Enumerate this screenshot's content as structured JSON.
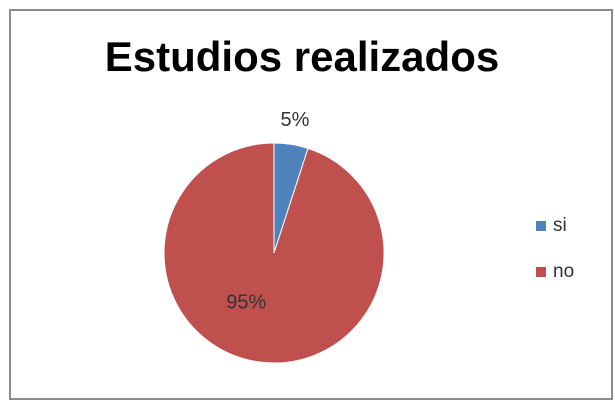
{
  "chart_data": {
    "type": "pie",
    "title": "Estudios realizados",
    "categories": [
      "si",
      "no"
    ],
    "values": [
      5,
      95
    ],
    "data_labels": [
      "5%",
      "95%"
    ],
    "colors": [
      "#4f81bd",
      "#c0504d"
    ],
    "legend_position": "right"
  }
}
